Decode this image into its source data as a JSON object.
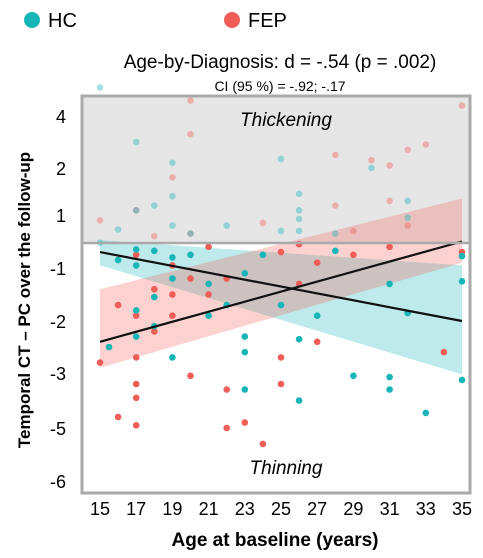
{
  "chart_data": {
    "type": "scatter",
    "title": "Age-by-Diagnosis: d = -.54 (p = .002)",
    "subtitle": "CI (95 %) = -.92; -.17",
    "xlabel": "Age at baseline (years)",
    "ylabel": "Temporal CT – PC over the follow-up",
    "x_ticks": [
      "15",
      "17",
      "19",
      "21",
      "23",
      "25",
      "27",
      "29",
      "31",
      "33",
      "35"
    ],
    "y_ticks": [
      "4",
      "2",
      "1",
      "-1",
      "-2",
      "-3",
      "-5",
      "-6"
    ],
    "region_labels": {
      "upper": "Thickening",
      "lower": "Thinning"
    },
    "legend_position": "top-left",
    "colors": {
      "HC": "#17b5b8",
      "FEP": "#ef5d57",
      "upper_region": "#e6e6e6",
      "frame": "#aaaaaa",
      "fit_line": "#111111"
    },
    "series": [
      {
        "name": "HC",
        "fit": {
          "x": [
            15,
            35
          ],
          "y": [
            -0.4,
            -2.0
          ]
        },
        "ci_band": {
          "x": [
            15,
            35
          ],
          "upper": [
            0.05,
            -0.9
          ],
          "lower": [
            -0.9,
            -3.05
          ]
        },
        "points": [
          [
            15,
            5.1
          ],
          [
            15,
            -0.05
          ],
          [
            15.5,
            -2.5
          ],
          [
            16,
            0.45
          ],
          [
            16,
            -0.7
          ],
          [
            17,
            3.0
          ],
          [
            17,
            1.1
          ],
          [
            17,
            -0.3
          ],
          [
            17,
            -0.9
          ],
          [
            17,
            -1.8
          ],
          [
            17,
            -2.3
          ],
          [
            18,
            1.2
          ],
          [
            18,
            -0.35
          ],
          [
            18,
            -1.55
          ],
          [
            18,
            -2.1
          ],
          [
            19,
            2.2
          ],
          [
            19,
            1.4
          ],
          [
            19,
            0.6
          ],
          [
            19,
            -0.6
          ],
          [
            19,
            -1.2
          ],
          [
            19,
            -2.7
          ],
          [
            20,
            0.3
          ],
          [
            20,
            -0.5
          ],
          [
            21,
            -1.3
          ],
          [
            21,
            -1.9
          ],
          [
            22,
            0.6
          ],
          [
            22,
            -1.7
          ],
          [
            23,
            -1.1
          ],
          [
            23,
            -2.3
          ],
          [
            23,
            -2.6
          ],
          [
            23,
            -3.6
          ],
          [
            24,
            -0.5
          ],
          [
            25,
            2.35
          ],
          [
            25,
            0.4
          ],
          [
            25,
            -1.7
          ],
          [
            26,
            1.45
          ],
          [
            26,
            1.1
          ],
          [
            26,
            0.85
          ],
          [
            26,
            0.4
          ],
          [
            26,
            -2.35
          ],
          [
            26,
            -4.0
          ],
          [
            27,
            -1.9
          ],
          [
            28,
            -0.35
          ],
          [
            28,
            0.3
          ],
          [
            29,
            -3.1
          ],
          [
            30,
            2.0
          ],
          [
            31,
            -1.3
          ],
          [
            31,
            -3.15
          ],
          [
            31,
            -3.6
          ],
          [
            32,
            1.3
          ],
          [
            32,
            0.9
          ],
          [
            32,
            -1.85
          ],
          [
            33,
            -4.45
          ],
          [
            35,
            -0.55
          ],
          [
            35,
            -1.25
          ],
          [
            35,
            -3.25
          ]
        ]
      },
      {
        "name": "FEP",
        "fit": {
          "x": [
            15,
            35
          ],
          "y": [
            -2.4,
            0.0
          ]
        },
        "ci_band": {
          "x": [
            15,
            35
          ],
          "upper": [
            -1.4,
            1.35
          ],
          "lower": [
            -2.9,
            -0.8
          ]
        },
        "points": [
          [
            15,
            0.8
          ],
          [
            15,
            -2.8
          ],
          [
            16,
            -1.7
          ],
          [
            16,
            -4.6
          ],
          [
            17,
            1.1
          ],
          [
            17,
            -0.5
          ],
          [
            17,
            -1.9
          ],
          [
            17,
            -2.7
          ],
          [
            17,
            -3.4
          ],
          [
            17,
            -3.9
          ],
          [
            17,
            -4.9
          ],
          [
            18,
            -1.4
          ],
          [
            18,
            -2.2
          ],
          [
            18,
            0.2
          ],
          [
            19,
            1.8
          ],
          [
            19,
            -1.5
          ],
          [
            19,
            -1.9
          ],
          [
            19,
            -0.9
          ],
          [
            20,
            4.6
          ],
          [
            20,
            3.3
          ],
          [
            20,
            -1.2
          ],
          [
            20,
            -3.1
          ],
          [
            20,
            0.3
          ],
          [
            21,
            -0.2
          ],
          [
            21,
            -1.5
          ],
          [
            22,
            -3.6
          ],
          [
            22,
            -1.2
          ],
          [
            22,
            -5.0
          ],
          [
            23,
            -4.8
          ],
          [
            24,
            -5.3
          ],
          [
            24,
            0.7
          ],
          [
            25,
            -2.7
          ],
          [
            25,
            -3.4
          ],
          [
            25,
            -0.4
          ],
          [
            26,
            -1.3
          ],
          [
            26,
            -0.1
          ],
          [
            27,
            -2.4
          ],
          [
            27,
            -0.8
          ],
          [
            28,
            2.5
          ],
          [
            28,
            1.2
          ],
          [
            29,
            0.4
          ],
          [
            29,
            -0.5
          ],
          [
            30,
            2.3
          ],
          [
            31,
            2.1
          ],
          [
            31,
            1.3
          ],
          [
            31,
            -0.2
          ],
          [
            32,
            2.7
          ],
          [
            32,
            0.6
          ],
          [
            33,
            2.9
          ],
          [
            34,
            -2.6
          ],
          [
            35,
            4.4
          ],
          [
            35,
            -0.4
          ]
        ]
      }
    ]
  }
}
